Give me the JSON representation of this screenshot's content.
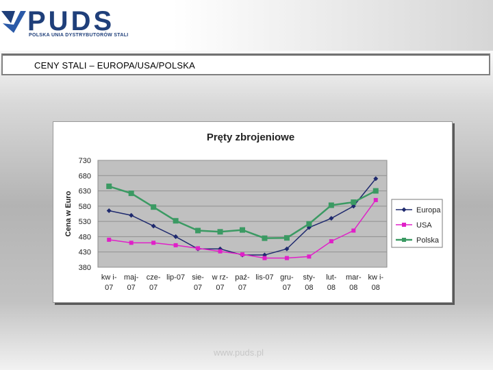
{
  "header": {
    "logo_text": "PUDS",
    "logo_subtitle": "POLSKA UNIA DYSTRYBUTORÓW STALI"
  },
  "slide": {
    "title": "CENY STALI – EUROPA/USA/POLSKA",
    "footer": "www.puds.pl"
  },
  "colors": {
    "brand": "#1f3f7a",
    "plot_bg": "#c0c0c0",
    "europa": "#1f2a6e",
    "usa": "#e020c8",
    "polska": "#3b9a63"
  },
  "chart_data": {
    "type": "line",
    "title": "Pręty zbrojeniowe",
    "ylabel": "Cena w Euro",
    "xlabel": "",
    "ylim": [
      380,
      730
    ],
    "yticks": [
      730,
      680,
      630,
      580,
      530,
      480,
      430,
      380
    ],
    "grid": true,
    "legend_position": "right",
    "categories": [
      [
        "kw i-",
        "07"
      ],
      [
        "maj-",
        "07"
      ],
      [
        "cze-",
        "07"
      ],
      [
        "lip-07",
        ""
      ],
      [
        "sie-",
        "07"
      ],
      [
        "w rz-",
        "07"
      ],
      [
        "paź-",
        "07"
      ],
      [
        "lis-07",
        ""
      ],
      [
        "gru-",
        "07"
      ],
      [
        "sty-",
        "08"
      ],
      [
        "lut-",
        "08"
      ],
      [
        "mar-",
        "08"
      ],
      [
        "kw i-",
        "08"
      ]
    ],
    "series": [
      {
        "name": "Europa",
        "color": "#1f2a6e",
        "marker": "diamond",
        "values": [
          565,
          550,
          515,
          480,
          440,
          440,
          420,
          420,
          440,
          510,
          540,
          580,
          670
        ]
      },
      {
        "name": "USA",
        "color": "#e020c8",
        "marker": "square",
        "values": [
          470,
          460,
          460,
          452,
          442,
          432,
          422,
          410,
          410,
          415,
          465,
          500,
          600
        ]
      },
      {
        "name": "Polska",
        "color": "#3b9a63",
        "marker": "square",
        "values": [
          645,
          622,
          577,
          532,
          500,
          496,
          502,
          475,
          476,
          522,
          583,
          593,
          630
        ]
      }
    ]
  }
}
